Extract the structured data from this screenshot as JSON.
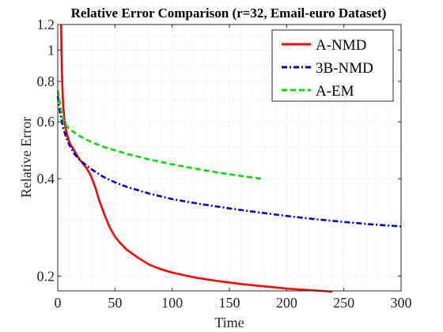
{
  "chart_data": {
    "type": "line",
    "title": "Relative Error Comparison (r=32, Email-euro Dataset)",
    "xlabel": "Time",
    "ylabel": "Relative Error",
    "xlim": [
      0,
      300
    ],
    "ylim": [
      0.18,
      1.2
    ],
    "yscale": "log",
    "grid": true,
    "legend_position": "top-right",
    "x_ticks": [
      0,
      50,
      100,
      150,
      200,
      250,
      300
    ],
    "x_tick_labels": [
      "0",
      "50",
      "100",
      "150",
      "200",
      "250",
      "300"
    ],
    "y_ticks": [
      0.2,
      0.4,
      0.6,
      0.8,
      1,
      1.2
    ],
    "y_tick_labels": [
      "0.2",
      "0.4",
      "0.6",
      "0.8",
      "1",
      "1.2"
    ],
    "series": [
      {
        "name": "A-NMD",
        "color": "#ff0000",
        "style": "solid",
        "x": [
          3,
          3.3,
          3.7,
          4,
          4.5,
          5,
          6,
          7,
          8,
          10,
          12,
          15,
          18,
          20,
          25,
          28,
          30,
          33,
          36,
          40,
          45,
          50,
          55,
          60,
          70,
          80,
          90,
          100,
          120,
          140,
          160,
          180,
          200,
          220,
          240
        ],
        "y": [
          1.2,
          1.0,
          0.85,
          0.78,
          0.71,
          0.66,
          0.6,
          0.57,
          0.55,
          0.52,
          0.505,
          0.485,
          0.465,
          0.455,
          0.432,
          0.415,
          0.4,
          0.375,
          0.345,
          0.315,
          0.285,
          0.265,
          0.252,
          0.242,
          0.228,
          0.217,
          0.21,
          0.205,
          0.198,
          0.193,
          0.189,
          0.186,
          0.183,
          0.181,
          0.179
        ]
      },
      {
        "name": "3B-NMD",
        "color": "#0000cc",
        "style": "dashdot",
        "x": [
          0,
          2,
          5,
          8,
          10,
          15,
          20,
          25,
          30,
          40,
          50,
          60,
          80,
          100,
          125,
          150,
          175,
          200,
          225,
          250,
          275,
          300
        ],
        "y": [
          0.72,
          0.64,
          0.57,
          0.53,
          0.51,
          0.475,
          0.455,
          0.44,
          0.427,
          0.405,
          0.39,
          0.378,
          0.36,
          0.346,
          0.334,
          0.324,
          0.315,
          0.307,
          0.3,
          0.294,
          0.289,
          0.285
        ]
      },
      {
        "name": "A-EM",
        "color": "#00dd00",
        "style": "dashed",
        "x": [
          0,
          3,
          5,
          8,
          10,
          15,
          20,
          30,
          40,
          50,
          60,
          80,
          100,
          120,
          140,
          160,
          178
        ],
        "y": [
          0.75,
          0.65,
          0.61,
          0.58,
          0.57,
          0.555,
          0.54,
          0.518,
          0.502,
          0.49,
          0.478,
          0.459,
          0.443,
          0.43,
          0.418,
          0.408,
          0.4
        ]
      }
    ]
  }
}
